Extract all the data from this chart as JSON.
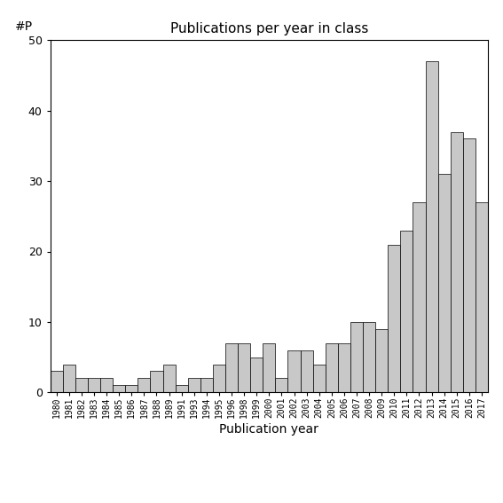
{
  "years": [
    "1980",
    "1981",
    "1982",
    "1983",
    "1984",
    "1985",
    "1986",
    "1987",
    "1988",
    "1989",
    "1991",
    "1993",
    "1994",
    "1995",
    "1996",
    "1998",
    "1999",
    "2000",
    "2001",
    "2002",
    "2003",
    "2004",
    "2005",
    "2006",
    "2007",
    "2008",
    "2009",
    "2010",
    "2011",
    "2012",
    "2013",
    "2014",
    "2015",
    "2016",
    "2017"
  ],
  "values": [
    3,
    4,
    2,
    2,
    2,
    1,
    1,
    2,
    3,
    4,
    1,
    2,
    2,
    4,
    7,
    7,
    5,
    7,
    2,
    6,
    6,
    4,
    7,
    7,
    10,
    10,
    9,
    21,
    23,
    27,
    47,
    31,
    37,
    36,
    27
  ],
  "title": "Publications per year in class",
  "xlabel": "Publication year",
  "ylabel_label": "#P",
  "ylim": [
    0,
    50
  ],
  "yticks": [
    0,
    10,
    20,
    30,
    40,
    50
  ],
  "bar_color": "#c8c8c8",
  "bar_edge_color": "#000000",
  "background_color": "#ffffff"
}
